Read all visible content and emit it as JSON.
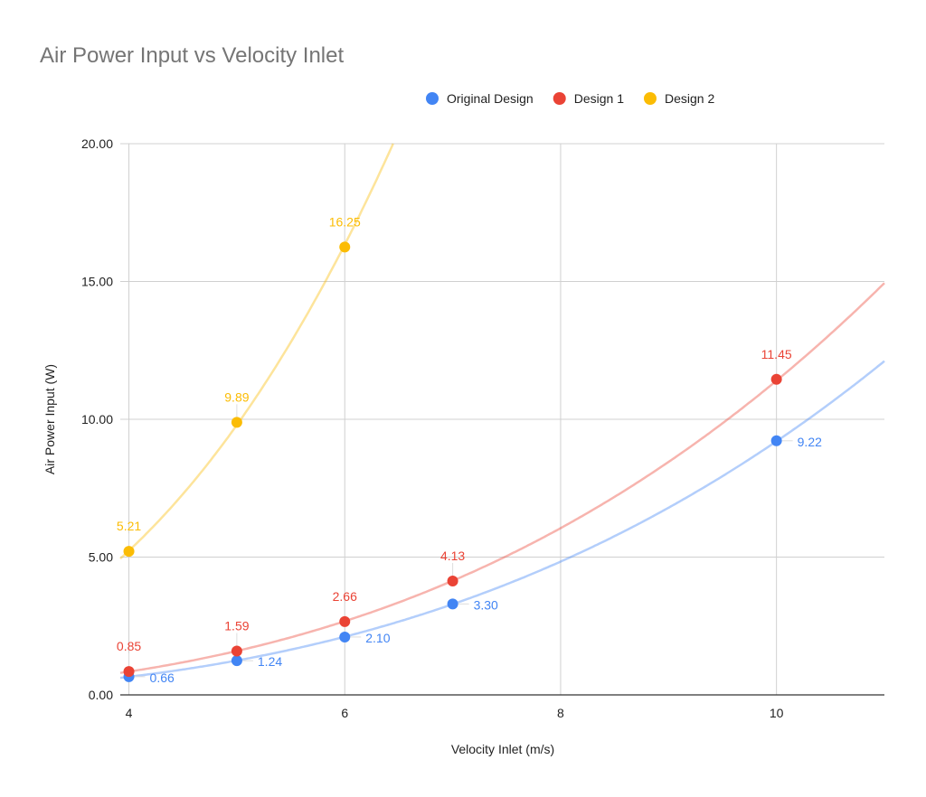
{
  "chart_data": {
    "type": "scatter",
    "title": "Air Power Input vs Velocity Inlet",
    "xlabel": "Velocity Inlet (m/s)",
    "ylabel": "Air Power Input (W)",
    "xlim": [
      3.92,
      11
    ],
    "ylim": [
      0,
      20
    ],
    "x_ticks": [
      "4",
      "6",
      "8",
      "10"
    ],
    "x_tick_values": [
      4,
      6,
      8,
      10
    ],
    "y_ticks": [
      "0.00",
      "5.00",
      "10.00",
      "15.00",
      "20.00"
    ],
    "y_tick_values": [
      0,
      5,
      10,
      15,
      20
    ],
    "grid": true,
    "legend_placement": "top",
    "trendline": "power",
    "series": [
      {
        "name": "Original Design",
        "color": "#4285f4",
        "label_position": "right",
        "x": [
          4,
          5,
          6,
          7,
          10
        ],
        "y": [
          0.66,
          1.24,
          2.1,
          3.3,
          9.22
        ],
        "labels": [
          "0.66",
          "1.24",
          "2.10",
          "3.30",
          "9.22"
        ]
      },
      {
        "name": "Design 1",
        "color": "#ea4335",
        "label_position": "above",
        "x": [
          4,
          5,
          6,
          7,
          10
        ],
        "y": [
          0.85,
          1.59,
          2.66,
          4.13,
          11.45
        ],
        "labels": [
          "0.85",
          "1.59",
          "2.66",
          "4.13",
          "11.45"
        ]
      },
      {
        "name": "Design 2",
        "color": "#fbbc04",
        "label_position": "above",
        "x": [
          4,
          5,
          6
        ],
        "y": [
          5.21,
          9.89,
          16.25
        ],
        "labels": [
          "5.21",
          "9.89",
          "16.25"
        ]
      }
    ]
  }
}
